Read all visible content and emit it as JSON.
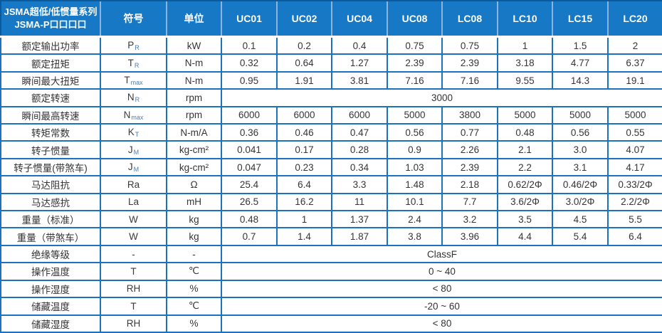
{
  "header": {
    "series_line1": "JSMA超低/低惯量系列",
    "series_line2": "JSMA-P口口口口",
    "symbol_col": "符号",
    "unit_col": "单位",
    "models": [
      "UC01",
      "UC02",
      "UC04",
      "UC08",
      "LC08",
      "LC10",
      "LC15",
      "LC20"
    ]
  },
  "rows": [
    {
      "label": "额定输出功率",
      "sym": "P",
      "sub": "R",
      "unit": "kW",
      "values": [
        "0.1",
        "0.2",
        "0.4",
        "0.75",
        "0.75",
        "1",
        "1.5",
        "2"
      ]
    },
    {
      "label": "额定扭矩",
      "sym": "T",
      "sub": "R",
      "unit": "N-m",
      "values": [
        "0.32",
        "0.64",
        "1.27",
        "2.39",
        "2.39",
        "3.18",
        "4.77",
        "6.37"
      ]
    },
    {
      "label": "瞬间最大扭矩",
      "sym": "T",
      "sub": "max",
      "unit": "N-m",
      "values": [
        "0.95",
        "1.91",
        "3.81",
        "7.16",
        "7.16",
        "9.55",
        "14.3",
        "19.1"
      ]
    },
    {
      "label": "额定转速",
      "sym": "N",
      "sub": "R",
      "unit": "rpm",
      "span_value": "3000"
    },
    {
      "label": "瞬间最高转速",
      "sym": "N",
      "sub": "max",
      "unit": "rpm",
      "values": [
        "6000",
        "6000",
        "6000",
        "5000",
        "3800",
        "5000",
        "5000",
        "5000"
      ]
    },
    {
      "label": "转矩常数",
      "sym": "K",
      "sub": "T",
      "unit": "N-m/A",
      "values": [
        "0.36",
        "0.46",
        "0.47",
        "0.56",
        "0.77",
        "0.48",
        "0.56",
        "0.55"
      ]
    },
    {
      "label": "转子惯量",
      "sym": "J",
      "sub": "M",
      "unit": "kg-cm²",
      "values": [
        "0.041",
        "0.17",
        "0.28",
        "0.9",
        "2.26",
        "2.1",
        "3.0",
        "4.07"
      ]
    },
    {
      "label": "转子惯量(带煞车)",
      "sym": "J",
      "sub": "M",
      "unit": "kg-cm²",
      "values": [
        "0.047",
        "0.23",
        "0.34",
        "1.03",
        "2.39",
        "2.2",
        "3.1",
        "4.17"
      ]
    },
    {
      "label": "马达阻抗",
      "sym": "Ra",
      "sub": "",
      "unit": "Ω",
      "values": [
        "25.4",
        "6.4",
        "3.3",
        "1.48",
        "2.18",
        "0.62/2Φ",
        "0.46/2Φ",
        "0.33/2Φ"
      ]
    },
    {
      "label": "马达感抗",
      "sym": "La",
      "sub": "",
      "unit": "mH",
      "values": [
        "26.5",
        "16.2",
        "11",
        "10.1",
        "7.7",
        "3.6/2Φ",
        "3.0/2Φ",
        "2.2/2Φ"
      ]
    },
    {
      "label": "重量（标准）",
      "sym": "W",
      "sub": "",
      "unit": "kg",
      "values": [
        "0.48",
        "1",
        "1.37",
        "2.4",
        "3.2",
        "3.5",
        "4.5",
        "5.5"
      ]
    },
    {
      "label": "重量（带煞车）",
      "sym": "W",
      "sub": "",
      "unit": "kg",
      "values": [
        "0.7",
        "1.4",
        "1.87",
        "3.8",
        "3.96",
        "4.4",
        "5.4",
        "6.4"
      ]
    },
    {
      "label": "绝缘等级",
      "sym": "-",
      "sub": "",
      "unit": "-",
      "span_value": "ClassF"
    },
    {
      "label": "操作温度",
      "sym": "T",
      "sub": "",
      "unit": "℃",
      "span_value": "0 ~ 40"
    },
    {
      "label": "操作湿度",
      "sym": "RH",
      "sub": "",
      "unit": "%",
      "span_value": "< 80"
    },
    {
      "label": "储藏温度",
      "sym": "T",
      "sub": "",
      "unit": "℃",
      "span_value": "-20 ~ 60"
    },
    {
      "label": "储藏湿度",
      "sym": "RH",
      "sub": "",
      "unit": "%",
      "span_value": "< 80"
    }
  ],
  "colors": {
    "header_bg": "#1779C5",
    "header_divider": "#8CB4DD",
    "grid_border": "#1B72BF",
    "outer_border": "#0D5A9B",
    "body_text": "#353535",
    "subscript_text": "#4F7CB0"
  }
}
